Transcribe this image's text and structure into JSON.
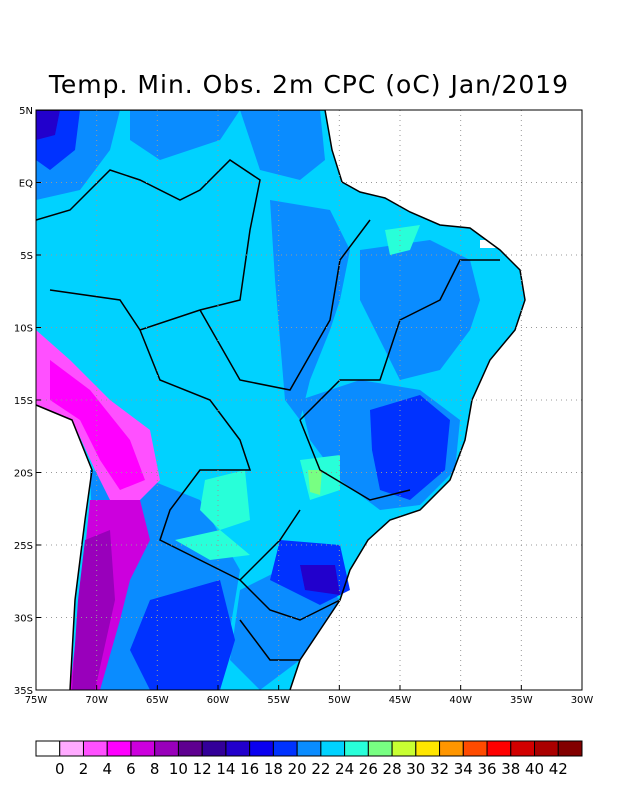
{
  "title": "Temp. Min. Obs. 2m CPC (oC) Jan/2019",
  "lon_labels": [
    "75W",
    "70W",
    "65W",
    "60W",
    "55W",
    "50W",
    "45W",
    "40W",
    "35W",
    "30W"
  ],
  "lat_labels": [
    "5N",
    "EQ",
    "5S",
    "10S",
    "15S",
    "20S",
    "25S",
    "30S",
    "35S"
  ],
  "colorbar": {
    "labels": [
      "0",
      "2",
      "4",
      "6",
      "8",
      "10",
      "12",
      "14",
      "16",
      "18",
      "20",
      "22",
      "24",
      "26",
      "28",
      "30",
      "32",
      "34",
      "36",
      "38",
      "40",
      "42"
    ],
    "colors": [
      "#ffffff",
      "#ffaaff",
      "#ff50ff",
      "#ff00ff",
      "#cc00dd",
      "#9900bb",
      "#5e0090",
      "#330099",
      "#2200cc",
      "#0a00f0",
      "#0032ff",
      "#0a8cff",
      "#00d2ff",
      "#28ffd9",
      "#78ff82",
      "#c8ff32",
      "#ffe600",
      "#ff9600",
      "#ff4b00",
      "#ff0000",
      "#d20000",
      "#aa0000",
      "#820000"
    ]
  }
}
